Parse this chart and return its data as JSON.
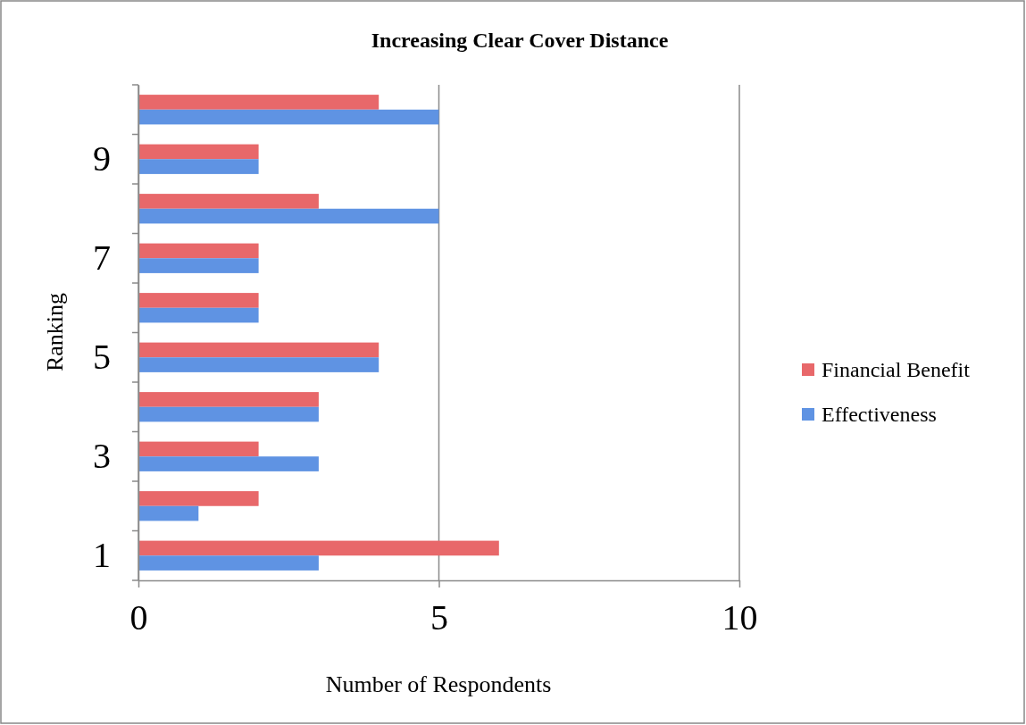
{
  "chart_data": {
    "type": "bar",
    "orientation": "horizontal",
    "title": "Increasing Clear Cover Distance",
    "xlabel": "Number of Respondents",
    "ylabel": "Ranking",
    "categories": [
      null,
      "9",
      null,
      "7",
      null,
      "5",
      null,
      "3",
      null,
      "1"
    ],
    "series": [
      {
        "name": "Financial Benefit",
        "color": "#e8686a",
        "values": [
          4,
          2,
          3,
          2,
          2,
          4,
          3,
          2,
          2,
          6
        ]
      },
      {
        "name": "Effectiveness",
        "color": "#5f93e3",
        "values": [
          5,
          2,
          5,
          2,
          2,
          4,
          3,
          3,
          1,
          3
        ]
      }
    ],
    "xlim": [
      0,
      10
    ],
    "xticks": [
      0,
      5,
      10
    ],
    "grid": "x",
    "legend": "right"
  }
}
